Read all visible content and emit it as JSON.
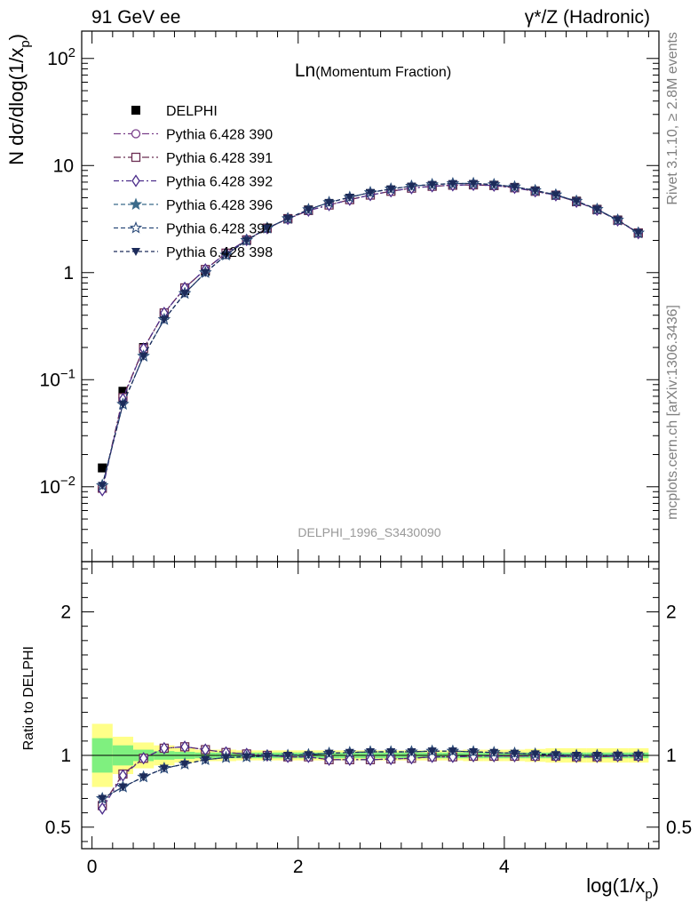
{
  "header": {
    "left": "91 GeV ee",
    "right": "γ*/Z (Hadronic)"
  },
  "side_labels": {
    "rivet": "Rivet 3.1.10, ≥ 2.8M events",
    "mcplots": "mcplots.cern.ch [arXiv:1306.3436]"
  },
  "colors": {
    "data": "#000000",
    "s390": "#7a3f8a",
    "s391": "#6b2d52",
    "s392": "#4b2c8a",
    "s396": "#3a6a8a",
    "s397": "#2c4b7a",
    "s398": "#1c2b5a",
    "band_inner": "#7ff07f",
    "band_outer": "#ffff88"
  },
  "chart_data": [
    {
      "type": "line",
      "title": "Ln(Momentum Fraction)",
      "title_main": "Ln",
      "title_sub": "(Momentum Fraction)",
      "watermark": "DELPHI_1996_S3430090",
      "ylabel": "N dσ/dlog(1/x_p)",
      "ylabel_main": "N dσ/dlog(1/x",
      "ylabel_sub": "p",
      "ylabel_close": ")",
      "yscale": "log",
      "ylim": [
        0.002,
        180
      ],
      "xlim": [
        -0.1,
        5.5
      ],
      "y_ticks": [
        {
          "v": 0.01,
          "base": "10",
          "exp": "−2"
        },
        {
          "v": 0.1,
          "base": "10",
          "exp": "−1"
        },
        {
          "v": 1,
          "base": "1",
          "exp": ""
        },
        {
          "v": 10,
          "base": "10",
          "exp": ""
        },
        {
          "v": 100,
          "base": "10",
          "exp": "2"
        }
      ],
      "legend_position": "top-left",
      "x": [
        0.1,
        0.3,
        0.5,
        0.7,
        0.9,
        1.1,
        1.3,
        1.5,
        1.7,
        1.9,
        2.1,
        2.3,
        2.5,
        2.7,
        2.9,
        3.1,
        3.3,
        3.5,
        3.7,
        3.9,
        4.1,
        4.3,
        4.5,
        4.7,
        4.9,
        5.1,
        5.3
      ],
      "series": [
        {
          "name": "DELPHI",
          "marker": "filled-square",
          "values": [
            0.015,
            0.078,
            0.2,
            0.4,
            0.68,
            1.03,
            1.48,
            2.0,
            2.6,
            3.2,
            3.85,
            4.4,
            4.95,
            5.45,
            5.9,
            6.25,
            6.45,
            6.6,
            6.65,
            6.55,
            6.25,
            5.8,
            5.3,
            4.65,
            3.9,
            3.1,
            2.35
          ]
        },
        {
          "name": "Pythia 6.428 390",
          "marker": "open-circle",
          "values": [
            0.0097,
            0.068,
            0.195,
            0.42,
            0.72,
            1.07,
            1.52,
            2.02,
            2.6,
            3.18,
            3.8,
            4.28,
            4.8,
            5.3,
            5.75,
            6.15,
            6.4,
            6.55,
            6.6,
            6.5,
            6.2,
            5.75,
            5.28,
            4.6,
            3.87,
            3.08,
            2.34
          ]
        },
        {
          "name": "Pythia 6.428 391",
          "marker": "open-square",
          "values": [
            0.0097,
            0.068,
            0.195,
            0.42,
            0.72,
            1.07,
            1.52,
            2.02,
            2.6,
            3.18,
            3.8,
            4.28,
            4.8,
            5.3,
            5.75,
            6.15,
            6.4,
            6.55,
            6.6,
            6.5,
            6.2,
            5.75,
            5.28,
            4.6,
            3.87,
            3.08,
            2.34
          ]
        },
        {
          "name": "Pythia 6.428 392",
          "marker": "open-diamond",
          "values": [
            0.0093,
            0.066,
            0.195,
            0.42,
            0.72,
            1.07,
            1.52,
            2.02,
            2.6,
            3.18,
            3.8,
            4.28,
            4.8,
            5.3,
            5.75,
            6.15,
            6.4,
            6.55,
            6.6,
            6.5,
            6.2,
            5.75,
            5.28,
            4.6,
            3.87,
            3.08,
            2.34
          ]
        },
        {
          "name": "Pythia 6.428 396",
          "marker": "filled-star",
          "values": [
            0.0103,
            0.059,
            0.166,
            0.365,
            0.64,
            1.0,
            1.46,
            2.0,
            2.6,
            3.2,
            3.88,
            4.52,
            5.05,
            5.6,
            6.05,
            6.42,
            6.65,
            6.78,
            6.8,
            6.65,
            6.32,
            5.85,
            5.32,
            4.65,
            3.9,
            3.1,
            2.35
          ]
        },
        {
          "name": "Pythia 6.428 397",
          "marker": "open-star",
          "values": [
            0.0103,
            0.059,
            0.166,
            0.365,
            0.64,
            1.0,
            1.46,
            2.0,
            2.6,
            3.2,
            3.88,
            4.52,
            5.05,
            5.6,
            6.05,
            6.42,
            6.65,
            6.78,
            6.8,
            6.65,
            6.32,
            5.85,
            5.32,
            4.65,
            3.9,
            3.1,
            2.35
          ]
        },
        {
          "name": "Pythia 6.428 398",
          "marker": "filled-triangle-down",
          "values": [
            0.0103,
            0.059,
            0.166,
            0.365,
            0.64,
            1.0,
            1.46,
            2.0,
            2.6,
            3.2,
            3.88,
            4.52,
            5.05,
            5.6,
            6.05,
            6.42,
            6.65,
            6.78,
            6.8,
            6.65,
            6.32,
            5.85,
            5.32,
            4.65,
            3.9,
            3.1,
            2.35
          ]
        }
      ]
    },
    {
      "type": "line",
      "ylabel": "Ratio to DELPHI",
      "xlabel": "log(1/x_p)",
      "xlabel_main": "log(1/x",
      "xlabel_sub": "p",
      "xlabel_close": ")",
      "ylim": [
        0.35,
        2.35
      ],
      "xlim": [
        -0.1,
        5.5
      ],
      "x_ticks": [
        0,
        2,
        4
      ],
      "y_ticks": [
        0.5,
        1,
        2
      ],
      "x": [
        0.1,
        0.3,
        0.5,
        0.7,
        0.9,
        1.1,
        1.3,
        1.5,
        1.7,
        1.9,
        2.1,
        2.3,
        2.5,
        2.7,
        2.9,
        3.1,
        3.3,
        3.5,
        3.7,
        3.9,
        4.1,
        4.3,
        4.5,
        4.7,
        4.9,
        5.1,
        5.3
      ],
      "band_inner": [
        0.12,
        0.07,
        0.04,
        0.03,
        0.025,
        0.02,
        0.02,
        0.02,
        0.02,
        0.02,
        0.02,
        0.02,
        0.02,
        0.02,
        0.02,
        0.02,
        0.02,
        0.02,
        0.02,
        0.02,
        0.02,
        0.02,
        0.02,
        0.02,
        0.02,
        0.02,
        0.02
      ],
      "band_outer": [
        0.22,
        0.13,
        0.09,
        0.07,
        0.05,
        0.04,
        0.04,
        0.035,
        0.035,
        0.035,
        0.035,
        0.035,
        0.035,
        0.035,
        0.035,
        0.035,
        0.035,
        0.035,
        0.04,
        0.04,
        0.04,
        0.045,
        0.05,
        0.05,
        0.05,
        0.05,
        0.05
      ],
      "series": [
        {
          "name": "Pythia 6.428 390",
          "marker": "open-circle",
          "values": [
            0.65,
            0.87,
            0.98,
            1.05,
            1.06,
            1.04,
            1.02,
            1.01,
            1.0,
            0.99,
            0.99,
            0.97,
            0.97,
            0.97,
            0.975,
            0.98,
            0.99,
            0.99,
            0.995,
            0.995,
            0.995,
            0.995,
            0.995,
            0.99,
            0.99,
            0.995,
            0.995
          ]
        },
        {
          "name": "Pythia 6.428 391",
          "marker": "open-square",
          "values": [
            0.65,
            0.87,
            0.98,
            1.05,
            1.06,
            1.04,
            1.02,
            1.01,
            1.0,
            0.99,
            0.99,
            0.97,
            0.97,
            0.97,
            0.975,
            0.98,
            0.99,
            0.99,
            0.995,
            0.995,
            0.995,
            0.995,
            0.995,
            0.99,
            0.99,
            0.995,
            0.995
          ]
        },
        {
          "name": "Pythia 6.428 392",
          "marker": "open-diamond",
          "values": [
            0.63,
            0.86,
            0.98,
            1.05,
            1.06,
            1.04,
            1.02,
            1.01,
            1.0,
            0.99,
            0.99,
            0.97,
            0.97,
            0.97,
            0.975,
            0.98,
            0.99,
            0.99,
            0.995,
            0.995,
            0.995,
            0.995,
            0.995,
            0.99,
            0.99,
            0.995,
            0.995
          ]
        },
        {
          "name": "Pythia 6.428 396",
          "marker": "filled-star",
          "values": [
            0.7,
            0.78,
            0.85,
            0.91,
            0.94,
            0.97,
            0.985,
            0.99,
            0.995,
            1.0,
            1.005,
            1.015,
            1.02,
            1.025,
            1.025,
            1.025,
            1.03,
            1.03,
            1.025,
            1.02,
            1.015,
            1.01,
            1.005,
            1.0,
            1.0,
            1.0,
            1.0
          ]
        },
        {
          "name": "Pythia 6.428 397",
          "marker": "open-star",
          "values": [
            0.7,
            0.78,
            0.85,
            0.91,
            0.94,
            0.97,
            0.985,
            0.99,
            0.995,
            1.0,
            1.005,
            1.015,
            1.02,
            1.025,
            1.025,
            1.025,
            1.03,
            1.03,
            1.025,
            1.02,
            1.015,
            1.01,
            1.005,
            1.0,
            1.0,
            1.0,
            1.0
          ]
        },
        {
          "name": "Pythia 6.428 398",
          "marker": "filled-triangle-down",
          "values": [
            0.7,
            0.78,
            0.85,
            0.91,
            0.94,
            0.97,
            0.985,
            0.99,
            0.995,
            1.0,
            1.005,
            1.015,
            1.02,
            1.025,
            1.025,
            1.025,
            1.03,
            1.03,
            1.025,
            1.02,
            1.015,
            1.01,
            1.005,
            1.0,
            1.0,
            1.0,
            1.0
          ]
        }
      ]
    }
  ]
}
